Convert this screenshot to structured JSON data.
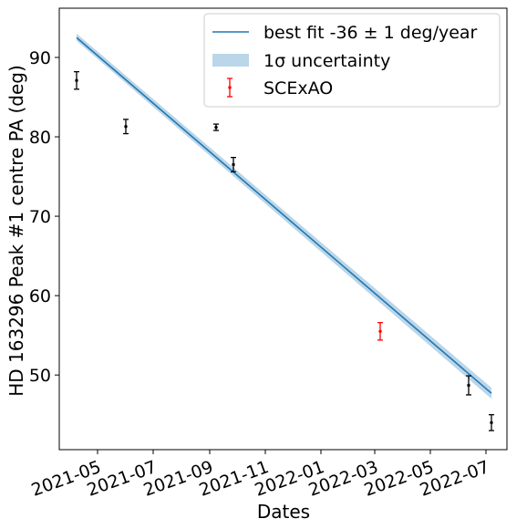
{
  "chart_data": {
    "type": "scatter",
    "title": "",
    "xlabel": "Dates",
    "ylabel": "HD 163296 Peak #1 centre PA (deg)",
    "x_axis_type": "date",
    "x_range": [
      "2021-03-20",
      "2022-07-24"
    ],
    "ylim": [
      40.6,
      96.2
    ],
    "x_ticks": [
      "2021-05",
      "2021-07",
      "2021-09",
      "2021-11",
      "2022-01",
      "2022-03",
      "2022-05",
      "2022-07"
    ],
    "y_ticks": [
      50,
      60,
      70,
      80,
      90
    ],
    "grid": false,
    "legend_position": "top-right",
    "series": [
      {
        "name": "best fit -36 ± 1 deg/year",
        "kind": "line",
        "color": "#1f77b4",
        "x": [
          "2021-04-08",
          "2022-07-07"
        ],
        "y": [
          92.5,
          47.7
        ]
      },
      {
        "name": "1σ uncertainty",
        "kind": "band",
        "color": "#1f77b4",
        "x": [
          "2021-04-08",
          "2022-07-07"
        ],
        "y_low": [
          92.1,
          47.0
        ],
        "y_high": [
          93.0,
          48.4
        ]
      },
      {
        "name": "",
        "kind": "errorbar",
        "color": "#000000",
        "x": [
          "2021-04-08",
          "2021-06-01",
          "2021-09-08",
          "2021-09-27",
          "2022-06-12",
          "2022-07-07"
        ],
        "y": [
          87.1,
          81.3,
          81.2,
          76.5,
          48.7,
          44.0
        ],
        "yerr": [
          1.1,
          0.9,
          0.4,
          0.9,
          1.2,
          1.0
        ]
      },
      {
        "name": "SCExAO",
        "kind": "errorbar",
        "color": "#ff0000",
        "x": [
          "2022-03-07"
        ],
        "y": [
          55.5
        ],
        "yerr": [
          1.1
        ]
      }
    ]
  }
}
